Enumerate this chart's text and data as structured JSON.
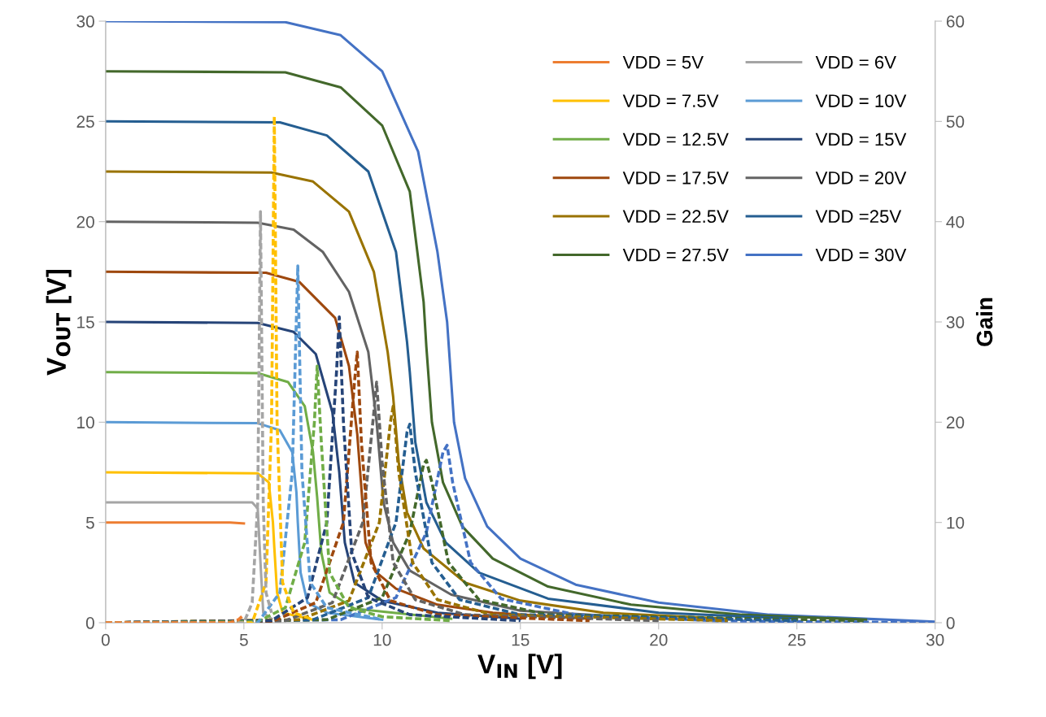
{
  "chart_data": {
    "type": "line",
    "xlabel": "V$_{IN}$ [V]",
    "ylabel": "V$_{OUT}$ [V]",
    "y2label": "Gain",
    "xlim": [
      0,
      30
    ],
    "xticks": [
      0,
      5,
      10,
      15,
      20,
      25,
      30
    ],
    "ylim": [
      0,
      30
    ],
    "yticks": [
      0,
      5,
      10,
      15,
      20,
      25,
      30
    ],
    "y2lim": [
      0,
      60
    ],
    "y2ticks": [
      0,
      10,
      20,
      30,
      40,
      50,
      60
    ],
    "grid": false,
    "legend": "top right",
    "marker": "none",
    "series": [
      {
        "name": "VDD = 5V",
        "color": "#ed7d31",
        "line_style": "solid",
        "x": [
          0,
          4.5,
          5
        ],
        "values": [
          5,
          5,
          4.95
        ]
      },
      {
        "name": "VDD = 6V",
        "color": "#a5a5a5",
        "line_style": "solid",
        "x": [
          0,
          5.3,
          5.5,
          5.6,
          5.7,
          6
        ],
        "values": [
          6,
          6,
          5.7,
          3.0,
          0.5,
          0.2
        ]
      },
      {
        "name": "VDD = 7.5V",
        "color": "#ffc000",
        "line_style": "solid",
        "x": [
          0,
          5.5,
          5.9,
          6.05,
          6.1,
          6.2,
          6.4,
          7.5
        ],
        "values": [
          7.5,
          7.45,
          7.0,
          5,
          3.75,
          1.5,
          0.5,
          0.15
        ]
      },
      {
        "name": "VDD = 10V",
        "color": "#5b9bd5",
        "line_style": "solid",
        "x": [
          0,
          5.5,
          6.3,
          6.75,
          6.9,
          6.95,
          7.05,
          7.3,
          8,
          10
        ],
        "values": [
          10,
          9.95,
          9.6,
          8.5,
          6.5,
          5,
          2.5,
          1.0,
          0.5,
          0.15
        ]
      },
      {
        "name": "VDD = 12.5V",
        "color": "#70ad47",
        "line_style": "solid",
        "x": [
          0,
          5.5,
          6.6,
          7.2,
          7.5,
          7.65,
          7.8,
          8.1,
          9,
          12.5
        ],
        "values": [
          12.5,
          12.45,
          12,
          10.8,
          8.5,
          6.25,
          3.5,
          1.5,
          0.7,
          0.2
        ]
      },
      {
        "name": "VDD = 15V",
        "color": "#264478",
        "line_style": "solid",
        "x": [
          0,
          5.5,
          6.8,
          7.6,
          8.2,
          8.45,
          8.65,
          9,
          10,
          12,
          15
        ],
        "values": [
          15,
          14.95,
          14.5,
          13.4,
          10.5,
          7.5,
          4,
          2,
          1.1,
          0.5,
          0.2
        ]
      },
      {
        "name": "VDD = 17.5V",
        "color": "#9e480e",
        "line_style": "solid",
        "x": [
          0,
          5.8,
          7,
          8.3,
          8.8,
          9.1,
          9.4,
          9.8,
          10.5,
          12,
          14,
          17.5
        ],
        "values": [
          17.5,
          17.45,
          17.0,
          15.2,
          12.8,
          9.4,
          4,
          2.5,
          1.7,
          0.9,
          0.5,
          0.2
        ]
      },
      {
        "name": "VDD = 20V",
        "color": "#636363",
        "line_style": "solid",
        "x": [
          0,
          5.5,
          6.8,
          7.85,
          8.8,
          9.5,
          9.8,
          10.05,
          10.4,
          11,
          12.5,
          15,
          20
        ],
        "values": [
          20,
          19.95,
          19.6,
          18.5,
          16.5,
          13.5,
          10,
          6,
          4,
          2.6,
          1.4,
          0.6,
          0.2
        ]
      },
      {
        "name": "VDD = 22.5V",
        "color": "#997300",
        "line_style": "solid",
        "x": [
          0,
          6,
          7.5,
          8.8,
          9.7,
          10.2,
          10.4,
          10.6,
          10.9,
          11.5,
          13,
          15,
          18,
          22.5
        ],
        "values": [
          22.5,
          22.45,
          22,
          20.5,
          17.5,
          13.5,
          11.25,
          8,
          5.5,
          3.7,
          2,
          1.1,
          0.5,
          0.2
        ]
      },
      {
        "name": "VDD =25V",
        "color": "#255e91",
        "line_style": "solid",
        "x": [
          0,
          6.3,
          8,
          9.5,
          10.5,
          10.9,
          11.0,
          11.2,
          11.6,
          12.3,
          13.5,
          16,
          20,
          25
        ],
        "values": [
          25,
          24.95,
          24.3,
          22.5,
          18.5,
          14,
          12.5,
          9,
          6,
          4,
          2.5,
          1.2,
          0.5,
          0.2
        ]
      },
      {
        "name": "VDD = 27.5V",
        "color": "#43682b",
        "line_style": "solid",
        "x": [
          0,
          6.5,
          8.5,
          10,
          11,
          11.5,
          11.6,
          11.8,
          12.2,
          12.9,
          14,
          16,
          19,
          23,
          27.5
        ],
        "values": [
          27.5,
          27.45,
          26.7,
          24.8,
          21.5,
          16,
          13.75,
          10,
          7,
          4.8,
          3.2,
          1.8,
          0.9,
          0.4,
          0.15
        ]
      },
      {
        "name": "VDD = 30V",
        "color": "#4472c4",
        "line_style": "solid",
        "x": [
          0,
          6.5,
          8.5,
          10,
          11.3,
          12,
          12.35,
          12.6,
          13,
          13.8,
          15,
          17,
          20,
          24,
          30
        ],
        "values": [
          30,
          29.95,
          29.3,
          27.5,
          23.5,
          18.5,
          15,
          10,
          7.2,
          4.8,
          3.2,
          1.9,
          1.0,
          0.4,
          0.05
        ]
      },
      {
        "color": "#ed7d31",
        "line_style": "dashed",
        "axis": "y2",
        "x": [
          0,
          4.5,
          4.8,
          5
        ],
        "values": [
          0,
          0,
          0.3,
          0.8
        ]
      },
      {
        "color": "#a5a5a5",
        "line_style": "dashed",
        "axis": "y2",
        "x": [
          0,
          5,
          5.3,
          5.5,
          5.6,
          5.7,
          5.8,
          6
        ],
        "values": [
          0,
          0,
          2,
          12,
          41,
          12,
          3,
          1
        ]
      },
      {
        "color": "#ffc000",
        "line_style": "dashed",
        "axis": "y2",
        "x": [
          0,
          5.3,
          5.8,
          6.0,
          6.1,
          6.2,
          6.4,
          6.8,
          7.5
        ],
        "values": [
          0,
          0,
          4,
          20,
          50.5,
          20,
          4,
          1,
          0.3
        ]
      },
      {
        "color": "#5b9bd5",
        "line_style": "dashed",
        "axis": "y2",
        "x": [
          0,
          5.5,
          6.3,
          6.75,
          6.95,
          7.1,
          7.4,
          8,
          10
        ],
        "values": [
          0,
          0,
          3,
          15,
          35.6,
          15,
          4,
          1.5,
          0.3
        ]
      },
      {
        "color": "#70ad47",
        "line_style": "dashed",
        "axis": "y2",
        "x": [
          0,
          5.5,
          6.5,
          7.2,
          7.55,
          7.65,
          7.8,
          8.1,
          8.8,
          10,
          12.5
        ],
        "values": [
          0,
          0.1,
          1.5,
          8,
          20,
          25.6,
          18,
          5,
          1.5,
          0.6,
          0.2
        ]
      },
      {
        "color": "#264478",
        "line_style": "dashed",
        "axis": "y2",
        "x": [
          0,
          6,
          7.3,
          8.0,
          8.35,
          8.45,
          8.6,
          8.9,
          9.5,
          11,
          15
        ],
        "values": [
          0,
          0.2,
          2.5,
          10,
          25,
          30.5,
          20,
          7,
          2.5,
          0.8,
          0.2
        ]
      },
      {
        "color": "#9e480e",
        "line_style": "dashed",
        "axis": "y2",
        "x": [
          0,
          6,
          7.6,
          8.6,
          9.0,
          9.1,
          9.25,
          9.6,
          10.3,
          12,
          17.5
        ],
        "values": [
          0,
          0.1,
          2,
          10,
          24,
          27,
          18,
          6,
          2.2,
          0.8,
          0.2
        ]
      },
      {
        "color": "#636363",
        "line_style": "dashed",
        "axis": "y2",
        "x": [
          0,
          6.5,
          8.2,
          9.3,
          9.7,
          9.8,
          10.0,
          10.4,
          11.2,
          13,
          20
        ],
        "values": [
          0,
          0.2,
          2,
          10,
          21,
          24,
          16,
          6,
          2.3,
          0.8,
          0.2
        ]
      },
      {
        "color": "#997300",
        "line_style": "dashed",
        "axis": "y2",
        "x": [
          0,
          7,
          8.8,
          9.9,
          10.3,
          10.4,
          10.6,
          11.1,
          12,
          14,
          22.5
        ],
        "values": [
          0,
          0.3,
          2.2,
          10,
          20,
          21.6,
          15,
          6,
          2.3,
          0.8,
          0.2
        ]
      },
      {
        "color": "#255e91",
        "line_style": "dashed",
        "axis": "y2",
        "x": [
          0,
          7.5,
          9.5,
          10.5,
          10.9,
          11.0,
          11.2,
          11.8,
          12.8,
          15,
          25
        ],
        "values": [
          0,
          0.3,
          2.5,
          10,
          19,
          19.8,
          15,
          6,
          2.3,
          0.8,
          0.2
        ]
      },
      {
        "color": "#43682b",
        "line_style": "dashed",
        "axis": "y2",
        "x": [
          0,
          8,
          10,
          11,
          11.5,
          11.6,
          11.8,
          12.4,
          13.5,
          16,
          27.5
        ],
        "values": [
          0,
          0.3,
          2.5,
          9,
          15.8,
          16.2,
          14,
          6,
          2.3,
          0.8,
          0.2
        ]
      },
      {
        "color": "#4472c4",
        "line_style": "dashed",
        "axis": "y2",
        "x": [
          0,
          8.5,
          10.5,
          11.6,
          12.2,
          12.35,
          12.55,
          13.2,
          14.3,
          17,
          22,
          30
        ],
        "values": [
          0,
          0.3,
          2.5,
          9,
          17,
          17.7,
          14,
          6,
          2.4,
          0.8,
          0.2,
          0
        ]
      }
    ]
  }
}
